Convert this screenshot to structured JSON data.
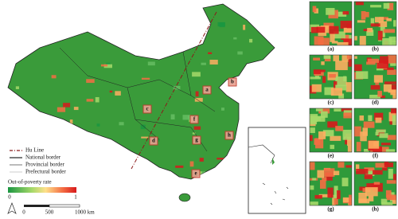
{
  "legend": {
    "items": [
      "Hu Line",
      "National border",
      "Provincial border",
      "Prefectural border"
    ],
    "title": "Out-of-poverty rate",
    "min": "0",
    "max": "1"
  },
  "scale": {
    "labels": [
      "0",
      "500",
      "1000 km"
    ]
  },
  "map_labels": [
    "a",
    "b",
    "c",
    "d",
    "e",
    "f",
    "g",
    "h"
  ],
  "panels": [
    "(a)",
    "(b)",
    "(c)",
    "(d)",
    "(e)",
    "(f)",
    "(g)",
    "(h)"
  ]
}
